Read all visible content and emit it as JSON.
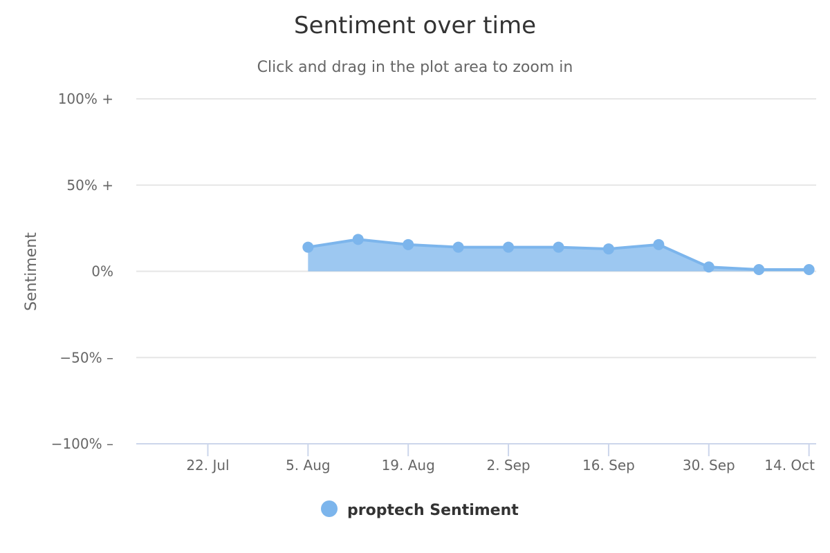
{
  "chart_data": {
    "type": "area",
    "title": "Sentiment over time",
    "subtitle": "Click and drag in the plot area to zoom in",
    "ylabel": "Sentiment",
    "xlabel": "",
    "ylim": [
      -100,
      100
    ],
    "y_ticks": [
      {
        "value": 100,
        "label": "100% +"
      },
      {
        "value": 50,
        "label": "50% +"
      },
      {
        "value": 0,
        "label": "0%"
      },
      {
        "value": -50,
        "label": "−50% –"
      },
      {
        "value": -100,
        "label": "−100% –"
      }
    ],
    "xlim": [
      "2019-07-12",
      "2019-10-15"
    ],
    "x_ticks": [
      {
        "date": "2019-07-22",
        "label": "22. Jul"
      },
      {
        "date": "2019-08-05",
        "label": "5. Aug"
      },
      {
        "date": "2019-08-19",
        "label": "19. Aug"
      },
      {
        "date": "2019-09-02",
        "label": "2. Sep"
      },
      {
        "date": "2019-09-16",
        "label": "16. Sep"
      },
      {
        "date": "2019-09-30",
        "label": "30. Sep"
      },
      {
        "date": "2019-10-14",
        "label": "14. Oct"
      }
    ],
    "grid": true,
    "legend_position": "bottom-center",
    "series": [
      {
        "name": "proptech Sentiment",
        "color": "#7cb5ec",
        "x": [
          "2019-08-05",
          "2019-08-12",
          "2019-08-19",
          "2019-08-26",
          "2019-09-02",
          "2019-09-09",
          "2019-09-16",
          "2019-09-23",
          "2019-09-30",
          "2019-10-07",
          "2019-10-14"
        ],
        "y": [
          14,
          18.5,
          15.5,
          14,
          14,
          14,
          13,
          15.5,
          2.5,
          1,
          1
        ]
      }
    ]
  }
}
